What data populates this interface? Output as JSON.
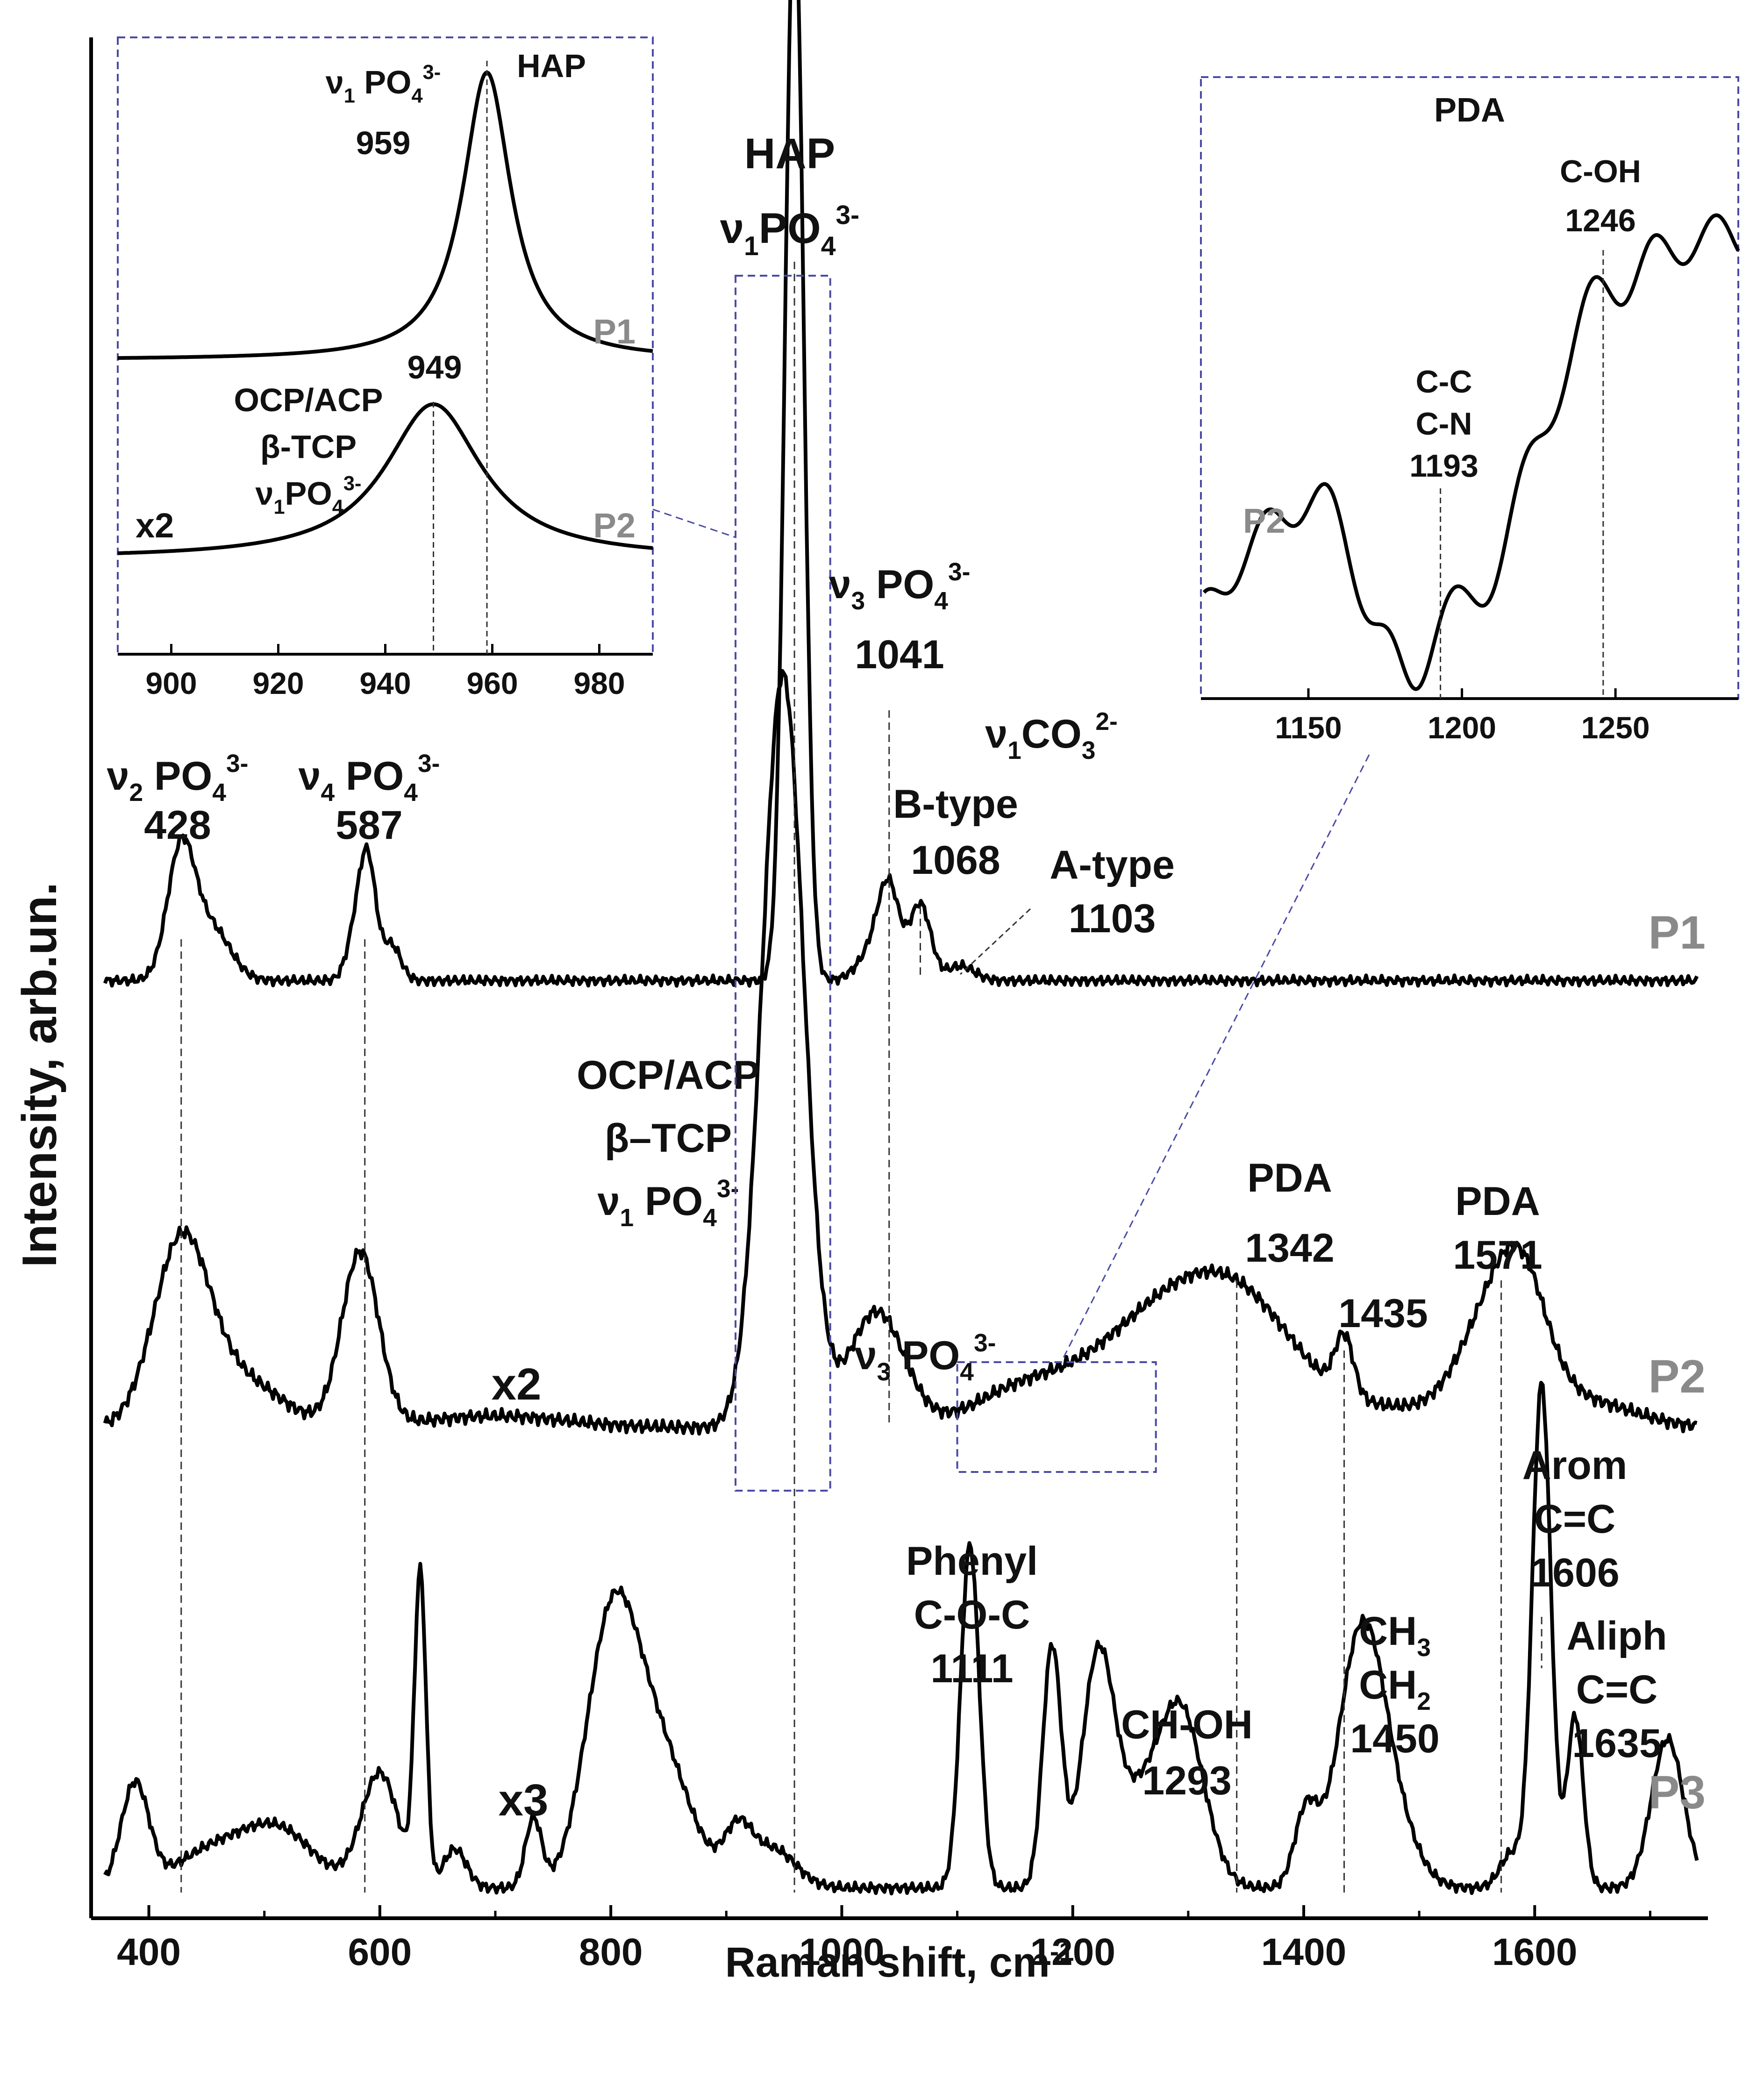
{
  "chart_data": [
    {
      "type": "line",
      "title": "",
      "xlabel": "Raman shift, cm",
      "xlabel_sup": "-1",
      "ylabel": "Intensity, arb.un.",
      "xlim": [
        350,
        1750
      ],
      "x_ticks": [
        "400",
        "600",
        "800",
        "1000",
        "1200",
        "1400",
        "1600"
      ],
      "series": [
        {
          "name": "P1",
          "multiplier": "",
          "baseline": 0.07,
          "peaks": [
            {
              "x": 428,
              "h": 0.62,
              "w": 12
            },
            {
              "x": 455,
              "h": 0.24,
              "w": 16
            },
            {
              "x": 580,
              "h": 0.24,
              "w": 8
            },
            {
              "x": 590,
              "h": 0.5,
              "w": 7
            },
            {
              "x": 610,
              "h": 0.17,
              "w": 8
            },
            {
              "x": 959,
              "h": 5.2,
              "w": 8
            },
            {
              "x": 1030,
              "h": 0.16,
              "w": 14
            },
            {
              "x": 1041,
              "h": 0.36,
              "w": 9
            },
            {
              "x": 1068,
              "h": 0.36,
              "w": 9
            },
            {
              "x": 1103,
              "h": 0.07,
              "w": 12
            }
          ]
        },
        {
          "name": "P2",
          "multiplier": "x2",
          "baseline": 0.0,
          "peaks": [
            {
              "x": 428,
              "h": 0.62,
              "w": 24
            },
            {
              "x": 480,
              "h": 0.16,
              "w": 35
            },
            {
              "x": 583,
              "h": 0.6,
              "w": 16
            },
            {
              "x": 700,
              "h": 0.04,
              "w": 60
            },
            {
              "x": 949,
              "h": 2.6,
              "w": 18
            },
            {
              "x": 1030,
              "h": 0.4,
              "w": 24
            },
            {
              "x": 1150,
              "h": 0.1,
              "w": 40
            },
            {
              "x": 1260,
              "h": 0.28,
              "w": 60
            },
            {
              "x": 1342,
              "h": 0.4,
              "w": 55
            },
            {
              "x": 1435,
              "h": 0.2,
              "w": 8
            },
            {
              "x": 1480,
              "h": 0.05,
              "w": 40
            },
            {
              "x": 1571,
              "h": 0.45,
              "w": 32
            },
            {
              "x": 1590,
              "h": 0.2,
              "w": 20
            },
            {
              "x": 1650,
              "h": 0.08,
              "w": 40
            }
          ]
        },
        {
          "name": "P3",
          "multiplier": "x3",
          "baseline": 0.02,
          "peaks": [
            {
              "x": 388,
              "h": 0.45,
              "w": 12
            },
            {
              "x": 450,
              "h": 0.14,
              "w": 30
            },
            {
              "x": 510,
              "h": 0.26,
              "w": 32
            },
            {
              "x": 600,
              "h": 0.5,
              "w": 16
            },
            {
              "x": 635,
              "h": 1.35,
              "w": 5
            },
            {
              "x": 665,
              "h": 0.17,
              "w": 10
            },
            {
              "x": 733,
              "h": 0.3,
              "w": 7
            },
            {
              "x": 800,
              "h": 1.05,
              "w": 22
            },
            {
              "x": 840,
              "h": 0.6,
              "w": 28
            },
            {
              "x": 910,
              "h": 0.22,
              "w": 12
            },
            {
              "x": 940,
              "h": 0.17,
              "w": 20
            },
            {
              "x": 1111,
              "h": 1.5,
              "w": 8
            },
            {
              "x": 1182,
              "h": 1.05,
              "w": 8
            },
            {
              "x": 1222,
              "h": 1.0,
              "w": 14
            },
            {
              "x": 1255,
              "h": 0.3,
              "w": 18
            },
            {
              "x": 1293,
              "h": 0.78,
              "w": 20
            },
            {
              "x": 1402,
              "h": 0.32,
              "w": 10
            },
            {
              "x": 1450,
              "h": 1.1,
              "w": 20
            },
            {
              "x": 1480,
              "h": 0.2,
              "w": 20
            },
            {
              "x": 1580,
              "h": 0.15,
              "w": 10
            },
            {
              "x": 1606,
              "h": 2.2,
              "w": 8
            },
            {
              "x": 1635,
              "h": 0.75,
              "w": 7
            },
            {
              "x": 1715,
              "h": 0.65,
              "w": 14
            }
          ]
        }
      ],
      "guide_lines": [
        428,
        587,
        959,
        1041,
        1068,
        1342,
        1435,
        1571,
        1606
      ],
      "annotations": [
        {
          "lines": [
            [
              "ν",
              "2",
              " PO",
              "4",
              "3-"
            ],
            "428"
          ]
        },
        {
          "lines": [
            [
              "ν",
              "4",
              " PO",
              "4",
              "3-"
            ],
            "587"
          ]
        },
        {
          "lines": [
            "HAP",
            [
              "ν",
              "1",
              "PO",
              "4",
              "3-"
            ]
          ]
        },
        {
          "lines": [
            [
              "ν",
              "3",
              " PO",
              "4",
              "3-"
            ],
            "1041"
          ]
        },
        {
          "lines": [
            [
              "ν",
              "1",
              "CO",
              "3",
              "2-"
            ]
          ]
        },
        {
          "lines": [
            "B-type",
            "1068"
          ]
        },
        {
          "lines": [
            "A-type",
            "1103"
          ]
        },
        {
          "lines": [
            "OCP/ACP",
            "β–TCP",
            [
              "ν",
              "1",
              " PO",
              "4",
              "3-"
            ]
          ]
        },
        {
          "lines": [
            [
              "ν",
              "3",
              " PO",
              "4",
              "3-"
            ]
          ]
        },
        {
          "lines": [
            "PDA",
            "1342"
          ]
        },
        {
          "lines": [
            "1435"
          ]
        },
        {
          "lines": [
            "PDA",
            "1571"
          ]
        },
        {
          "lines": [
            "Phenyl",
            "C-O-C",
            "1111"
          ]
        },
        {
          "lines": [
            "CH-OH",
            "1293"
          ]
        },
        {
          "lines": [
            [
              "CH",
              "3",
              ""
            ],
            [
              "CH",
              "2",
              ""
            ],
            "1450"
          ]
        },
        {
          "lines": [
            "Arom",
            "C=C",
            "1606"
          ]
        },
        {
          "lines": [
            "Aliph",
            "C=C",
            "1635"
          ]
        }
      ]
    },
    {
      "type": "line",
      "title": "",
      "xlim": [
        890,
        990
      ],
      "x_ticks": [
        "900",
        "920",
        "940",
        "960",
        "980"
      ],
      "series": [
        {
          "name": "P1",
          "peak": 959,
          "w": 5.5
        },
        {
          "name": "P2",
          "multiplier": "x2",
          "peak": 949,
          "w": 11
        }
      ],
      "annotations": [
        {
          "lines": [
            [
              "ν",
              "1",
              " PO",
              "4",
              "3-"
            ],
            "959"
          ]
        },
        {
          "lines": [
            "HAP"
          ]
        },
        {
          "lines": [
            "949"
          ]
        },
        {
          "lines": [
            "OCP/ACP",
            "β-TCP",
            [
              "ν",
              "1",
              "PO",
              "4",
              "3-"
            ]
          ]
        }
      ]
    },
    {
      "type": "line",
      "title": "PDA",
      "xlim": [
        1115,
        1290
      ],
      "x_ticks": [
        "1150",
        "1200",
        "1250"
      ],
      "series": [
        {
          "name": "P2"
        }
      ],
      "annotations": [
        {
          "lines": [
            "C-OH",
            "1246"
          ]
        },
        {
          "lines": [
            "C-C",
            "C-N",
            "1193"
          ]
        }
      ]
    }
  ]
}
